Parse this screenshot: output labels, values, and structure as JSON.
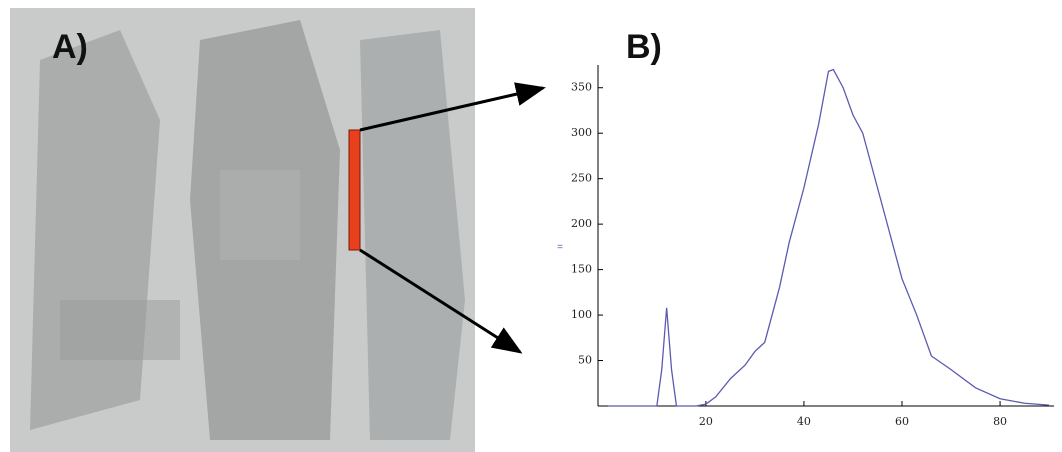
{
  "panel_a_label": "A)",
  "panel_b_label": "B)",
  "chart_data": {
    "type": "line",
    "y_label": "=",
    "x": [
      0,
      2,
      4,
      6,
      8,
      10,
      11,
      12,
      13,
      14,
      16,
      18,
      20,
      22,
      25,
      28,
      30,
      32,
      35,
      37,
      40,
      43,
      45,
      46,
      48,
      50,
      52,
      55,
      58,
      60,
      63,
      66,
      70,
      75,
      80,
      85,
      90
    ],
    "series": [
      {
        "name": null,
        "color": "#5b5bb0",
        "values": [
          0,
          0,
          0,
          0,
          0,
          0,
          40,
          108,
          40,
          0,
          0,
          0,
          2,
          10,
          30,
          45,
          60,
          70,
          130,
          180,
          240,
          310,
          368,
          370,
          350,
          320,
          300,
          240,
          180,
          140,
          100,
          55,
          40,
          20,
          8,
          3,
          1
        ]
      }
    ],
    "xlim": [
      -2,
      91
    ],
    "ylim": [
      0,
      375
    ],
    "xticks": [
      20,
      40,
      60,
      80
    ],
    "yticks": [
      50,
      100,
      150,
      200,
      250,
      300,
      350
    ]
  }
}
